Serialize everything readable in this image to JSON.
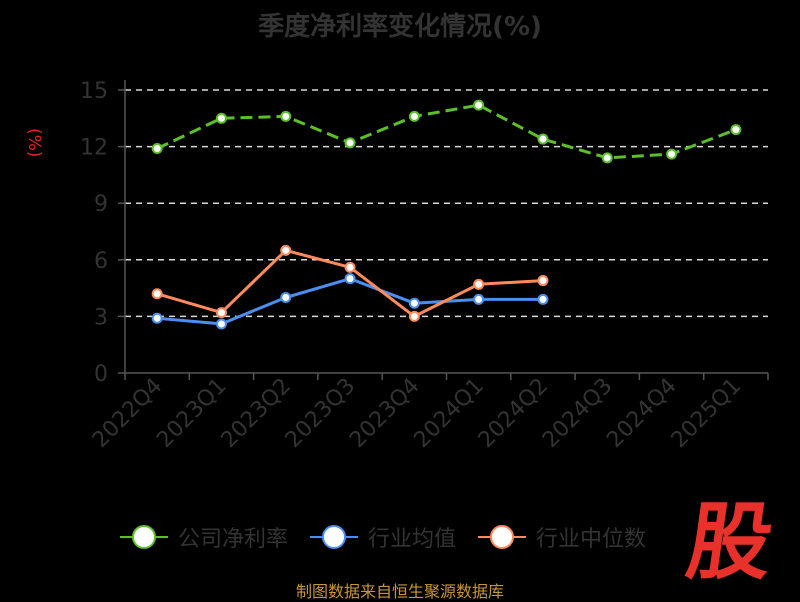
{
  "chart_data": {
    "type": "line",
    "title": "季度净利率变化情况(%)",
    "ylabel": "(%)",
    "xlabel": "",
    "categories": [
      "2022Q4",
      "2023Q1",
      "2023Q2",
      "2023Q3",
      "2023Q4",
      "2024Q1",
      "2024Q2",
      "2024Q3",
      "2024Q4",
      "2025Q1"
    ],
    "yticks": [
      "0",
      "3",
      "6",
      "9",
      "12",
      "15"
    ],
    "ylim": [
      0,
      15
    ],
    "grid": "horizontal-dashed",
    "legend_position": "bottom",
    "series": [
      {
        "name": "公司净利率",
        "color": "#5cbf2a",
        "dashed": true,
        "values": [
          11.9,
          13.5,
          13.6,
          12.2,
          13.6,
          14.2,
          12.4,
          11.4,
          11.6,
          12.9
        ]
      },
      {
        "name": "行业均值",
        "color": "#4a8ef0",
        "dashed": false,
        "values": [
          2.9,
          2.6,
          4.0,
          5.0,
          3.7,
          3.9,
          3.9,
          null,
          null,
          null
        ]
      },
      {
        "name": "行业中位数",
        "color": "#ff8a5c",
        "dashed": false,
        "values": [
          4.2,
          3.2,
          6.5,
          5.6,
          3.0,
          4.7,
          4.9,
          null,
          null,
          null
        ]
      }
    ]
  },
  "footer": "制图数据来自恒生聚源数据库",
  "logo_text": "股",
  "colors": {
    "background": "#000000",
    "title": "#333333",
    "axis": "#555555",
    "grid": "#d9d9d9",
    "ylabel": "#e8231f",
    "footer": "#c8963a",
    "logo": "#e8312a"
  }
}
